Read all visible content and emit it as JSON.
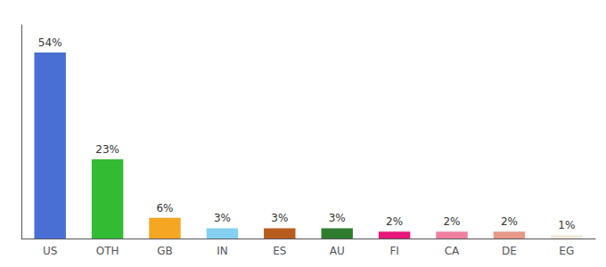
{
  "chart_data": {
    "type": "bar",
    "categories": [
      "US",
      "OTH",
      "GB",
      "IN",
      "ES",
      "AU",
      "FI",
      "CA",
      "DE",
      "EG"
    ],
    "values": [
      54,
      23,
      6,
      3,
      3,
      3,
      2,
      2,
      2,
      1
    ],
    "value_labels": [
      "54%",
      "23%",
      "6%",
      "3%",
      "3%",
      "3%",
      "2%",
      "2%",
      "2%",
      "1%"
    ],
    "colors": [
      "#4a6fd4",
      "#33bb33",
      "#f5a623",
      "#85d0f0",
      "#b85c20",
      "#2e7d2e",
      "#e8177a",
      "#f080a0",
      "#e89888",
      "#f0ead8"
    ],
    "ylim": [
      0,
      62
    ],
    "data_labels": true,
    "tick_labels": "x",
    "grid": false
  }
}
